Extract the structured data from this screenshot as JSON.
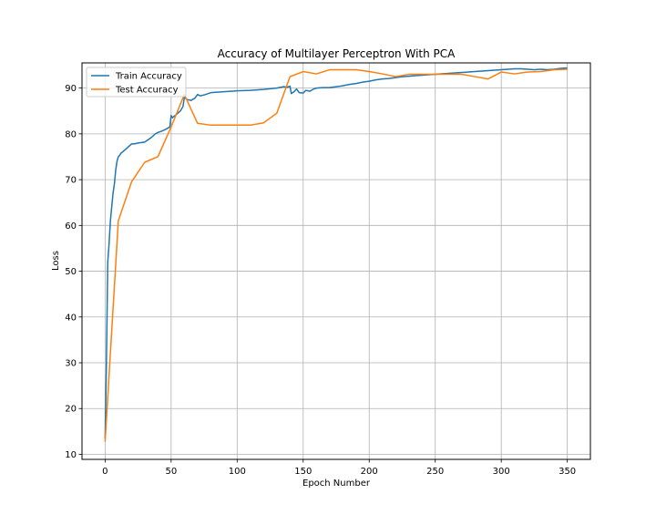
{
  "chart_data": {
    "type": "line",
    "title": "Accuracy of Multilayer Perceptron With PCA",
    "xlabel": "Epoch Number",
    "ylabel": "Loss",
    "xlim": [
      -17.5,
      367.5
    ],
    "ylim": [
      8.9,
      95.5
    ],
    "xticks": [
      0,
      50,
      100,
      150,
      200,
      250,
      300,
      350
    ],
    "yticks": [
      10,
      20,
      30,
      40,
      50,
      60,
      70,
      80,
      90
    ],
    "grid": true,
    "legend_position": "top-left",
    "series": [
      {
        "name": "Train Accuracy",
        "color": "#1f77b4",
        "x": [
          0,
          1,
          2,
          3,
          4,
          5,
          6,
          7,
          8,
          9,
          10,
          11,
          12,
          13,
          15,
          17,
          20,
          22,
          25,
          30,
          35,
          38,
          40,
          43,
          46,
          49,
          50,
          51,
          52,
          53,
          55,
          57,
          59,
          60,
          62,
          65,
          68,
          70,
          72,
          75,
          80,
          85,
          90,
          95,
          100,
          110,
          120,
          130,
          135,
          138,
          140,
          141,
          143,
          145,
          147,
          150,
          152,
          155,
          158,
          160,
          165,
          170,
          175,
          180,
          185,
          190,
          195,
          200,
          205,
          210,
          215,
          220,
          225,
          230,
          235,
          240,
          245,
          250,
          255,
          260,
          265,
          270,
          275,
          280,
          285,
          290,
          295,
          300,
          305,
          310,
          315,
          320,
          325,
          330,
          335,
          340,
          345,
          350
        ],
        "y": [
          13.5,
          30,
          52,
          56,
          61,
          64,
          67,
          69,
          72,
          74,
          75,
          75.3,
          75.8,
          76,
          76.5,
          77,
          77.8,
          77.8,
          78,
          78.2,
          79.2,
          80,
          80.3,
          80.6,
          81,
          81.5,
          84,
          83.5,
          83.8,
          84,
          84.5,
          85,
          86,
          88,
          87.5,
          87.3,
          87.8,
          88.6,
          88.3,
          88.5,
          89,
          89.1,
          89.2,
          89.3,
          89.4,
          89.5,
          89.7,
          90,
          90.3,
          90.2,
          90.4,
          88.8,
          89.2,
          89.8,
          89,
          88.9,
          89.5,
          89.3,
          89.8,
          90,
          90.1,
          90.1,
          90.3,
          90.5,
          90.8,
          91,
          91.3,
          91.5,
          91.8,
          92,
          92.1,
          92.3,
          92.5,
          92.6,
          92.7,
          92.8,
          92.9,
          93,
          93.1,
          93.2,
          93.3,
          93.4,
          93.5,
          93.6,
          93.7,
          93.8,
          93.9,
          94,
          94.1,
          94.2,
          94.2,
          94.1,
          94,
          94.1,
          94,
          94.1,
          94.3,
          94.4
        ]
      },
      {
        "name": "Test Accuracy",
        "color": "#ff7f0e",
        "x": [
          0,
          10,
          20,
          30,
          40,
          50,
          60,
          70,
          80,
          90,
          100,
          110,
          120,
          130,
          140,
          150,
          160,
          170,
          180,
          190,
          200,
          210,
          220,
          230,
          240,
          250,
          260,
          270,
          280,
          290,
          300,
          310,
          320,
          330,
          340,
          350
        ],
        "y": [
          12.8,
          61,
          69.5,
          73.8,
          75,
          81.5,
          88.6,
          82.3,
          81.9,
          81.9,
          81.9,
          81.9,
          82.4,
          84.5,
          92.5,
          93.6,
          93.1,
          94,
          94,
          94,
          93.6,
          93.1,
          92.5,
          93,
          93,
          93,
          93,
          93,
          92.5,
          92,
          93.5,
          93.1,
          93.5,
          93.6,
          94,
          94.1
        ]
      }
    ]
  }
}
